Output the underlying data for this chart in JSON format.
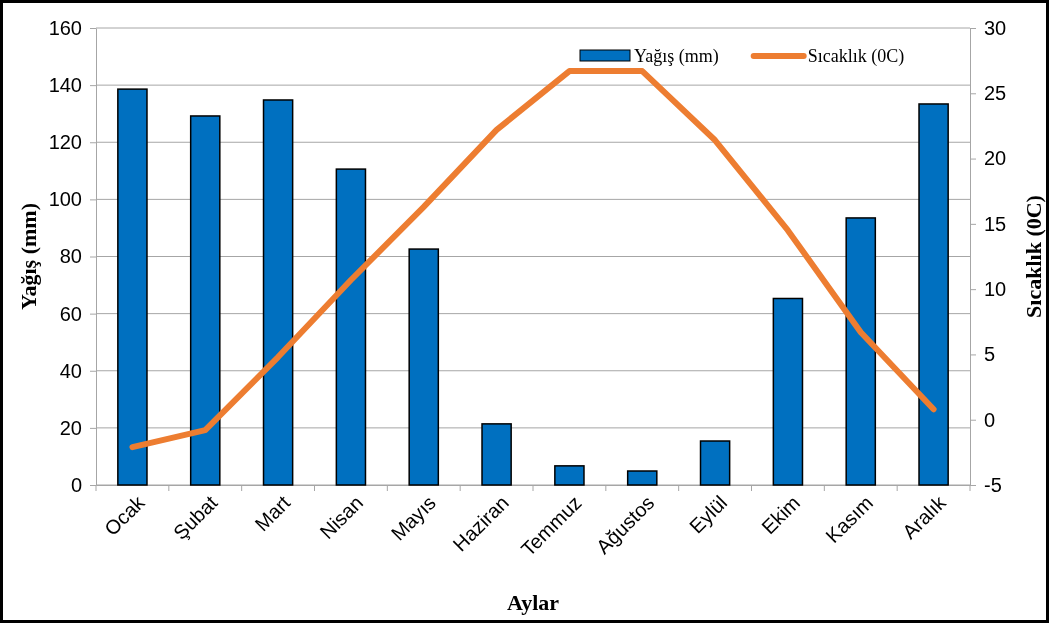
{
  "chart_data": {
    "type": "bar",
    "xlabel": "Aylar",
    "ylabel": "Yağış (mm)",
    "y2label": "Sıcaklık (0C)",
    "categories": [
      "Ocak",
      "Şubat",
      "Mart",
      "Nisan",
      "Mayıs",
      "Haziran",
      "Temmuz",
      "Ağustos",
      "Eylül",
      "Ekim",
      "Kasım",
      "Aralık"
    ],
    "series": [
      {
        "name": "Yağış (mm)",
        "color": "#0070c0",
        "values": [
          138.6,
          129.2,
          134.8,
          110.6,
          82.6,
          21.4,
          6.7,
          4.9,
          15.4,
          65.3,
          93.5,
          133.4
        ]
      },
      {
        "name": "Sıcaklık (0C)",
        "type": "line",
        "axis": "y2",
        "color": "#ed7d31",
        "values": [
          -2.1,
          -0.8,
          4.8,
          10.7,
          16.3,
          22.2,
          26.7,
          26.7,
          21.4,
          14.5,
          6.7,
          0.8
        ]
      }
    ],
    "ylim": [
      0,
      160
    ],
    "yticks": [
      0,
      20,
      40,
      60,
      80,
      100,
      120,
      140,
      160
    ],
    "y2lim": [
      -5,
      30
    ],
    "y2ticks": [
      -5,
      0,
      5,
      10,
      15,
      20,
      25,
      30
    ],
    "grid": "y",
    "legend": "top right",
    "marker": "none",
    "line_style": "solid"
  }
}
